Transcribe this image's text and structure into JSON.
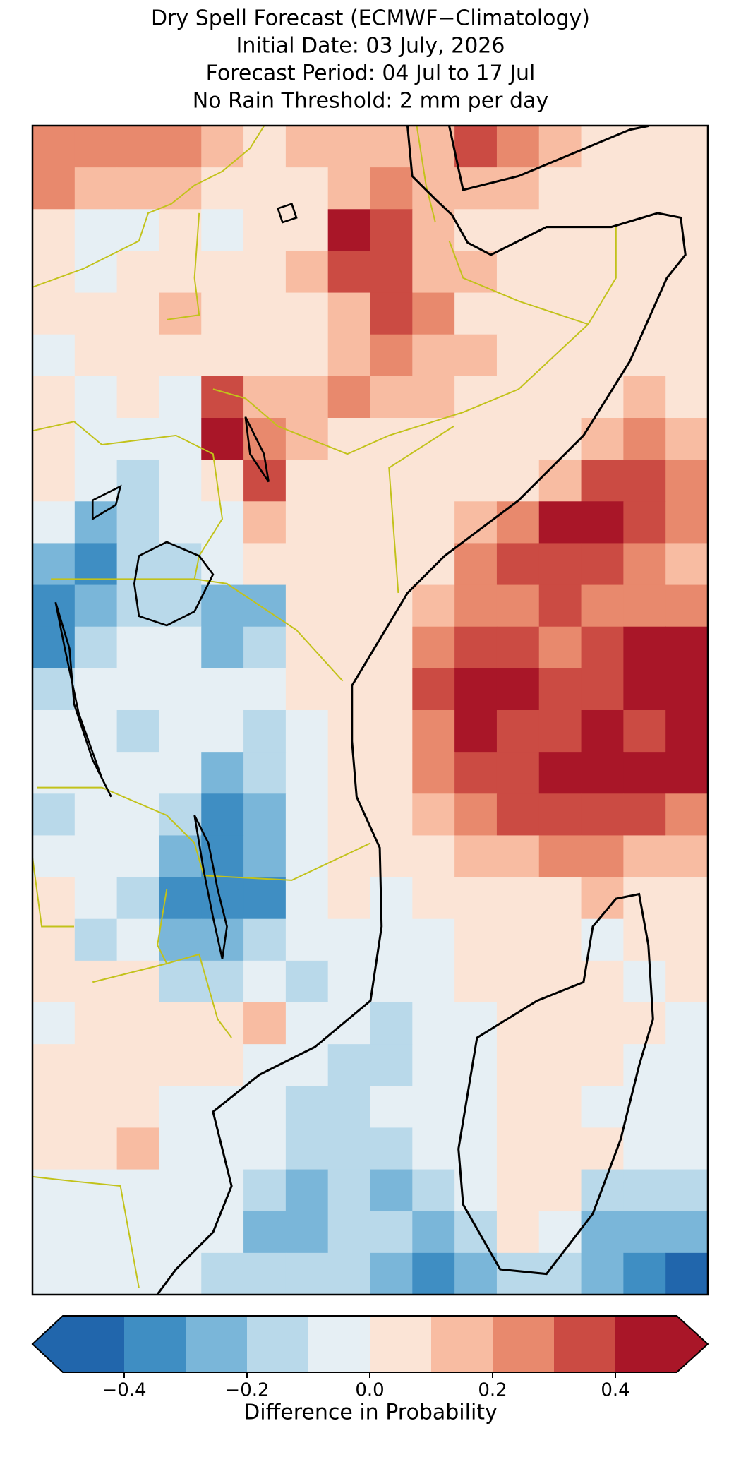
{
  "chart_data": {
    "type": "map",
    "title": [
      "Dry Spell Forecast (ECMWF−Climatology)",
      "Initial Date: 03 July, 2026",
      "Forecast Period: 04 Jul to 17 Jul",
      "No Rain Threshold: 2 mm per day"
    ],
    "values": [
      [
        0.25,
        0.25,
        0.25,
        0.25,
        0.15,
        0.05,
        0.15,
        0.15,
        0.15,
        0.15,
        0.35,
        0.25,
        0.15,
        0.05,
        0.05,
        0.05
      ],
      [
        0.25,
        0.15,
        0.15,
        0.15,
        0.05,
        0.05,
        0.05,
        0.15,
        0.25,
        0.15,
        0.15,
        0.15,
        0.05,
        0.05,
        0.05,
        0.05
      ],
      [
        0.05,
        -0.05,
        -0.05,
        0.05,
        -0.05,
        0.05,
        0.05,
        0.45,
        0.35,
        0.15,
        0.05,
        0.05,
        0.05,
        0.05,
        0.05,
        0.05
      ],
      [
        0.05,
        -0.05,
        0.05,
        0.05,
        0.05,
        0.05,
        0.15,
        0.35,
        0.35,
        0.15,
        0.15,
        0.05,
        0.05,
        0.05,
        0.05,
        0.05
      ],
      [
        0.05,
        0.05,
        0.05,
        0.15,
        0.05,
        0.05,
        0.05,
        0.15,
        0.35,
        0.25,
        0.05,
        0.05,
        0.05,
        0.05,
        0.05,
        0.05
      ],
      [
        -0.05,
        0.05,
        0.05,
        0.05,
        0.05,
        0.05,
        0.05,
        0.15,
        0.25,
        0.15,
        0.15,
        0.05,
        0.05,
        0.05,
        0.05,
        0.05
      ],
      [
        0.05,
        -0.05,
        0.05,
        -0.05,
        0.35,
        0.15,
        0.15,
        0.25,
        0.15,
        0.15,
        0.05,
        0.05,
        0.05,
        0.05,
        0.15,
        0.05
      ],
      [
        0.05,
        -0.05,
        -0.05,
        -0.05,
        0.45,
        0.25,
        0.15,
        0.05,
        0.05,
        0.05,
        0.05,
        0.05,
        0.05,
        0.15,
        0.25,
        0.15
      ],
      [
        0.05,
        -0.05,
        -0.15,
        -0.05,
        0.05,
        0.35,
        0.05,
        0.05,
        0.05,
        0.05,
        0.05,
        0.05,
        0.15,
        0.35,
        0.35,
        0.25
      ],
      [
        -0.05,
        -0.25,
        -0.15,
        -0.05,
        -0.05,
        0.15,
        0.05,
        0.05,
        0.05,
        0.05,
        0.15,
        0.25,
        0.45,
        0.45,
        0.35,
        0.25
      ],
      [
        -0.25,
        -0.35,
        -0.15,
        -0.15,
        -0.05,
        0.05,
        0.05,
        0.05,
        0.05,
        0.05,
        0.25,
        0.35,
        0.35,
        0.35,
        0.25,
        0.15
      ],
      [
        -0.35,
        -0.25,
        -0.15,
        -0.15,
        -0.25,
        -0.25,
        0.05,
        0.05,
        0.05,
        0.15,
        0.25,
        0.25,
        0.35,
        0.25,
        0.25,
        0.25
      ],
      [
        -0.35,
        -0.15,
        -0.05,
        -0.05,
        -0.25,
        -0.15,
        0.05,
        0.05,
        0.05,
        0.25,
        0.35,
        0.35,
        0.25,
        0.35,
        0.45,
        0.45
      ],
      [
        -0.15,
        -0.05,
        -0.05,
        -0.05,
        -0.05,
        -0.05,
        0.05,
        0.05,
        0.05,
        0.35,
        0.45,
        0.45,
        0.35,
        0.35,
        0.45,
        0.45
      ],
      [
        -0.05,
        -0.05,
        -0.15,
        -0.05,
        -0.05,
        -0.15,
        -0.05,
        0.05,
        0.05,
        0.25,
        0.45,
        0.35,
        0.35,
        0.45,
        0.35,
        0.45
      ],
      [
        -0.05,
        -0.05,
        -0.05,
        -0.05,
        -0.25,
        -0.15,
        -0.05,
        0.05,
        0.05,
        0.25,
        0.35,
        0.35,
        0.45,
        0.45,
        0.45,
        0.45
      ],
      [
        -0.15,
        -0.05,
        -0.05,
        -0.15,
        -0.35,
        -0.25,
        -0.05,
        0.05,
        0.05,
        0.15,
        0.25,
        0.35,
        0.35,
        0.35,
        0.35,
        0.25
      ],
      [
        -0.05,
        -0.05,
        -0.05,
        -0.25,
        -0.35,
        -0.25,
        -0.05,
        0.05,
        0.05,
        0.05,
        0.15,
        0.15,
        0.25,
        0.25,
        0.15,
        0.15
      ],
      [
        0.05,
        -0.05,
        -0.15,
        -0.35,
        -0.35,
        -0.35,
        -0.05,
        0.05,
        -0.05,
        0.05,
        0.05,
        0.05,
        0.05,
        0.15,
        0.05,
        0.05
      ],
      [
        0.05,
        -0.15,
        -0.05,
        -0.25,
        -0.25,
        -0.15,
        -0.05,
        -0.05,
        -0.05,
        -0.05,
        0.05,
        0.05,
        0.05,
        -0.05,
        0.05,
        0.05
      ],
      [
        0.05,
        0.05,
        0.05,
        -0.15,
        -0.15,
        -0.05,
        -0.15,
        -0.05,
        -0.05,
        -0.05,
        0.05,
        0.05,
        0.05,
        0.05,
        -0.05,
        0.05
      ],
      [
        -0.05,
        0.05,
        0.05,
        0.05,
        0.05,
        0.15,
        -0.05,
        -0.05,
        -0.15,
        -0.05,
        -0.05,
        0.05,
        0.05,
        0.05,
        0.05,
        -0.05
      ],
      [
        0.05,
        0.05,
        0.05,
        0.05,
        0.05,
        -0.05,
        -0.05,
        -0.15,
        -0.15,
        -0.05,
        -0.05,
        0.05,
        0.05,
        0.05,
        -0.05,
        -0.05
      ],
      [
        0.05,
        0.05,
        0.05,
        -0.05,
        -0.05,
        -0.05,
        -0.15,
        -0.15,
        -0.05,
        -0.05,
        -0.05,
        0.05,
        0.05,
        -0.05,
        -0.05,
        -0.05
      ],
      [
        0.05,
        0.05,
        0.15,
        -0.05,
        -0.05,
        -0.05,
        -0.15,
        -0.15,
        -0.15,
        -0.05,
        -0.05,
        0.05,
        0.05,
        0.05,
        -0.05,
        -0.05
      ],
      [
        -0.05,
        -0.05,
        -0.05,
        -0.05,
        -0.05,
        -0.15,
        -0.25,
        -0.15,
        -0.25,
        -0.15,
        -0.05,
        0.05,
        0.05,
        -0.15,
        -0.15,
        -0.15
      ],
      [
        -0.05,
        -0.05,
        -0.05,
        -0.05,
        -0.05,
        -0.25,
        -0.25,
        -0.15,
        -0.15,
        -0.25,
        -0.15,
        0.05,
        -0.05,
        -0.25,
        -0.25,
        -0.25
      ],
      [
        -0.05,
        -0.05,
        -0.05,
        -0.05,
        -0.15,
        -0.15,
        -0.15,
        -0.15,
        -0.25,
        -0.35,
        -0.25,
        -0.15,
        -0.15,
        -0.25,
        -0.35,
        -0.45
      ]
    ],
    "colorbar": {
      "lim": [
        -0.5,
        0.5
      ],
      "extend": "both",
      "colors": [
        "#2166ac",
        "#3f8ec3",
        "#7ab6d9",
        "#b9d9ea",
        "#e6eff4",
        "#fbe4d6",
        "#f8bca2",
        "#e8896d",
        "#cb4b43",
        "#a91628"
      ],
      "ticks": [
        {
          "value": -0.4,
          "label": "−0.4"
        },
        {
          "value": -0.2,
          "label": "−0.2"
        },
        {
          "value": 0,
          "label": "0.0"
        },
        0.2,
        0.4
      ],
      "label": "Difference in Probability"
    }
  }
}
